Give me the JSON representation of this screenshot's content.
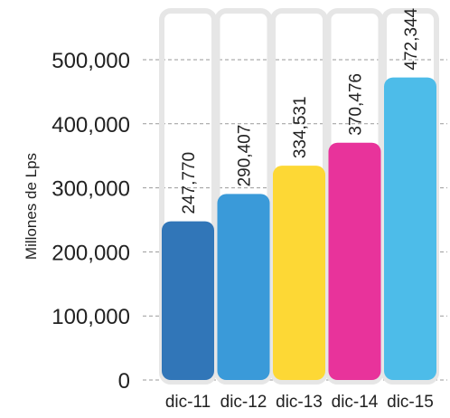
{
  "chart_data": {
    "type": "bar",
    "ylabel": "Millones de Lps",
    "categories": [
      "dic-11",
      "dic-12",
      "dic-13",
      "dic-14",
      "dic-15"
    ],
    "values": [
      247770,
      290407,
      334531,
      370476,
      472344
    ],
    "value_labels": [
      "247,770",
      "290,407",
      "334,531",
      "370,476",
      "472,344"
    ],
    "ylim": [
      0,
      500000
    ],
    "yticks": [
      0,
      100000,
      200000,
      300000,
      400000,
      500000
    ],
    "ytick_labels": [
      "0",
      "100,000",
      "200,000",
      "300,000",
      "400,000",
      "500,000"
    ],
    "grid": true,
    "colors": [
      "#3176b8",
      "#3a9ad9",
      "#fdd835",
      "#e8339b",
      "#4dbce9"
    ],
    "track_color": "#e6e6e6"
  }
}
